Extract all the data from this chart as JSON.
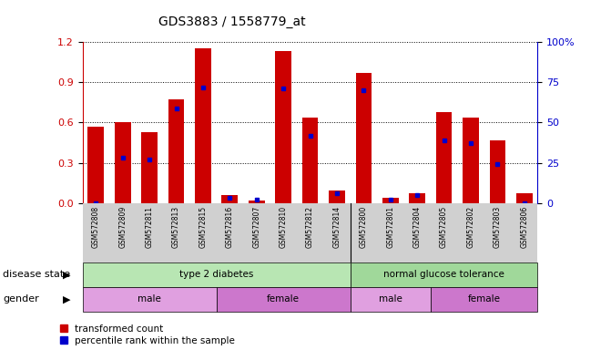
{
  "title": "GDS3883 / 1558779_at",
  "samples": [
    "GSM572808",
    "GSM572809",
    "GSM572811",
    "GSM572813",
    "GSM572815",
    "GSM572816",
    "GSM572807",
    "GSM572810",
    "GSM572812",
    "GSM572814",
    "GSM572800",
    "GSM572801",
    "GSM572804",
    "GSM572805",
    "GSM572802",
    "GSM572803",
    "GSM572806"
  ],
  "transformed_count": [
    0.57,
    0.6,
    0.53,
    0.77,
    1.15,
    0.06,
    0.02,
    1.13,
    0.64,
    0.09,
    0.97,
    0.04,
    0.07,
    0.68,
    0.64,
    0.47,
    0.07
  ],
  "percentile_rank": [
    0.0,
    0.28,
    0.27,
    0.59,
    0.72,
    0.03,
    0.02,
    0.71,
    0.42,
    0.06,
    0.7,
    0.02,
    0.05,
    0.39,
    0.37,
    0.24,
    0.0
  ],
  "bar_color": "#cc0000",
  "dot_color": "#0000cc",
  "ylim_left": [
    0,
    1.2
  ],
  "ylim_right": [
    0,
    100
  ],
  "yticks_left": [
    0,
    0.3,
    0.6,
    0.9,
    1.2
  ],
  "yticks_right": [
    0,
    25,
    50,
    75,
    100
  ],
  "disease_groups": [
    {
      "label": "type 2 diabetes",
      "start": 0,
      "end": 10,
      "color": "#b8e6b3"
    },
    {
      "label": "normal glucose tolerance",
      "start": 10,
      "end": 17,
      "color": "#a0d89a"
    }
  ],
  "gender_groups": [
    {
      "label": "male",
      "start": 0,
      "end": 5,
      "color": "#e0a0e0"
    },
    {
      "label": "female",
      "start": 5,
      "end": 10,
      "color": "#cc77cc"
    },
    {
      "label": "male",
      "start": 10,
      "end": 13,
      "color": "#e0a0e0"
    },
    {
      "label": "female",
      "start": 13,
      "end": 17,
      "color": "#cc77cc"
    }
  ],
  "legend_items": [
    {
      "label": "transformed count",
      "color": "#cc0000"
    },
    {
      "label": "percentile rank within the sample",
      "color": "#0000cc"
    }
  ],
  "xtick_bg_color": "#d0d0d0"
}
